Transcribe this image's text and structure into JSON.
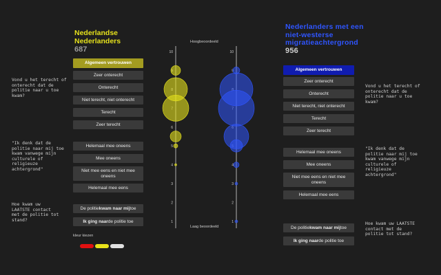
{
  "left_panel": {
    "title": "Nederlandse Nederlanders",
    "count": "687",
    "trust_button": "Algemeen vertrouwen",
    "unfair_options": [
      "Zeer onterecht",
      "Onterecht",
      "Niet terecht, niet onterecht",
      "Terecht",
      "Zeer terecht"
    ],
    "discrimination_options": [
      "Helemaal mee oneens",
      "Mee oneens",
      "Niet mee eens en niet mee oneens",
      "Helemaal mee eens"
    ],
    "contact_options": [
      {
        "pre": "De politie ",
        "bold": "kwam naar mij",
        "post": " toe"
      },
      {
        "pre": "",
        "bold": "Ik ging naar",
        "post": " de politie toe"
      }
    ],
    "color_label": "kleur kiezen",
    "colors": [
      "#e01010",
      "#e8e21a",
      "#e0e0e0"
    ]
  },
  "right_panel": {
    "title": "Nederlanders met een niet-westerse migratieachtergrond",
    "count": "956",
    "trust_button": "Algemeen vertrouwen",
    "unfair_options": [
      "Zeer onterecht",
      "Onterecht",
      "Niet terecht, niet onterecht",
      "Terecht",
      "Zeer terecht"
    ],
    "discrimination_options": [
      "Helemaal mee oneens",
      "Mee oneens",
      "Niet mee eens en niet mee oneens",
      "Helemaal mee eens"
    ],
    "contact_options": [
      {
        "pre": "De politie ",
        "bold": "kwam naar mij",
        "post": " toe"
      },
      {
        "pre": "",
        "bold": "Ik ging naar",
        "post": " de politie toe"
      }
    ]
  },
  "questions_left": {
    "q1": "Vond u het terecht of onterecht dat de politie naar u toe kwam?",
    "q2": "\"Ik denk dat de politie naar mij toe kwam vanwege mijn culturele of religieuze achtergrond\"",
    "q3": "Hoe kwam uw LAATSTE contact met de politie tot stand?"
  },
  "questions_right": {
    "q1": "Vond u het terecht of onterecht dat de politie naar u toe kwam?",
    "q2": "\"Ik denk dat de politie naar mij toe kwam vanwege mijn culturele of religieuze achtergrond\"",
    "q3": "Hoe kwam uw LAATSTE contact met de politie tot stand?"
  },
  "scale": {
    "top_label": "Hoogbeoordeeld",
    "bottom_label": "Laag beoordeeld",
    "ticks": [
      "10",
      "9",
      "8",
      "7",
      "6",
      "5",
      "4",
      "3",
      "2",
      "1"
    ]
  },
  "chart_data": {
    "type": "scatter",
    "y_range": [
      1,
      10
    ],
    "series": [
      {
        "color": "#e5e11c",
        "points": [
          {
            "y": 9.0,
            "r": 7
          },
          {
            "y": 8.0,
            "r": 17
          },
          {
            "y": 7.0,
            "r": 19
          },
          {
            "y": 5.5,
            "r": 8
          },
          {
            "y": 5.0,
            "r": 3
          },
          {
            "y": 4.0,
            "r": 1.5
          }
        ]
      },
      {
        "color": "#2f55ff",
        "points": [
          {
            "y": 9.0,
            "r": 5
          },
          {
            "y": 8.0,
            "r": 24
          },
          {
            "y": 7.0,
            "r": 26
          },
          {
            "y": 5.5,
            "r": 18
          },
          {
            "y": 5.0,
            "r": 9
          },
          {
            "y": 4.0,
            "r": 4
          },
          {
            "y": 3.0,
            "r": 2
          },
          {
            "y": 1.0,
            "r": 2
          }
        ]
      }
    ]
  }
}
